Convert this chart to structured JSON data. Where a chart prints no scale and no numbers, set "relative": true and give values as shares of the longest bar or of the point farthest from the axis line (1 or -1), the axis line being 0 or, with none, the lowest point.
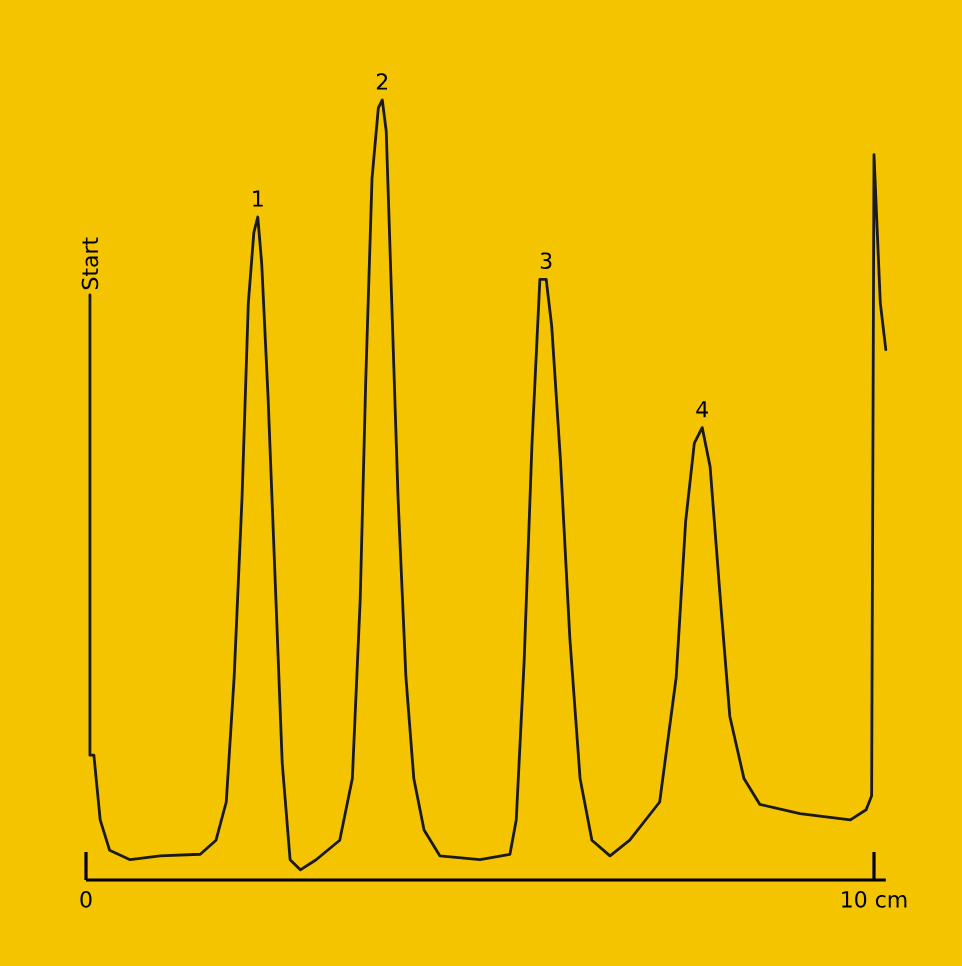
{
  "chart_data": {
    "type": "line",
    "relative": true,
    "color": "#1a1a1a",
    "marker": "none",
    "line_style": "solid",
    "grid": false,
    "xlim": [
      0,
      10.15
    ],
    "xticks": [
      {
        "value": 0,
        "label": "0"
      },
      {
        "value": 10,
        "label": "10 cm"
      }
    ],
    "x": [
      0.05,
      0.05,
      0.1,
      0.18,
      0.3,
      0.56,
      0.94,
      1.45,
      1.65,
      1.78,
      1.88,
      1.98,
      2.06,
      2.13,
      2.18,
      2.23,
      2.31,
      2.41,
      2.49,
      2.59,
      2.72,
      2.92,
      3.22,
      3.38,
      3.48,
      3.55,
      3.63,
      3.71,
      3.76,
      3.81,
      3.88,
      3.96,
      4.06,
      4.16,
      4.29,
      4.49,
      5.0,
      5.38,
      5.46,
      5.56,
      5.66,
      5.76,
      5.84,
      5.91,
      6.02,
      6.14,
      6.27,
      6.42,
      6.65,
      6.9,
      7.28,
      7.49,
      7.61,
      7.72,
      7.82,
      7.92,
      8.05,
      8.17,
      8.35,
      8.55,
      9.06,
      9.7,
      9.9,
      9.97,
      10.0,
      10.08,
      10.15
    ],
    "values": [
      0.75,
      0.16,
      0.16,
      0.077,
      0.038,
      0.026,
      0.031,
      0.033,
      0.051,
      0.1,
      0.26,
      0.49,
      0.74,
      0.83,
      0.85,
      0.79,
      0.62,
      0.36,
      0.15,
      0.026,
      0.013,
      0.026,
      0.051,
      0.13,
      0.36,
      0.64,
      0.9,
      0.99,
      1.0,
      0.96,
      0.74,
      0.49,
      0.26,
      0.13,
      0.064,
      0.031,
      0.026,
      0.033,
      0.077,
      0.28,
      0.56,
      0.77,
      0.77,
      0.71,
      0.54,
      0.31,
      0.13,
      0.051,
      0.031,
      0.051,
      0.1,
      0.26,
      0.46,
      0.56,
      0.58,
      0.53,
      0.36,
      0.21,
      0.13,
      0.097,
      0.085,
      0.077,
      0.09,
      0.108,
      0.93,
      0.74,
      0.68
    ],
    "annotations": [
      {
        "text": "Start",
        "x": 0.05,
        "y": 0.75
      },
      {
        "text": "1",
        "x": 2.18,
        "y": 0.85
      },
      {
        "text": "2",
        "x": 3.76,
        "y": 1.0
      },
      {
        "text": "3",
        "x": 5.84,
        "y": 0.77
      },
      {
        "text": "4",
        "x": 7.82,
        "y": 0.58
      }
    ]
  }
}
